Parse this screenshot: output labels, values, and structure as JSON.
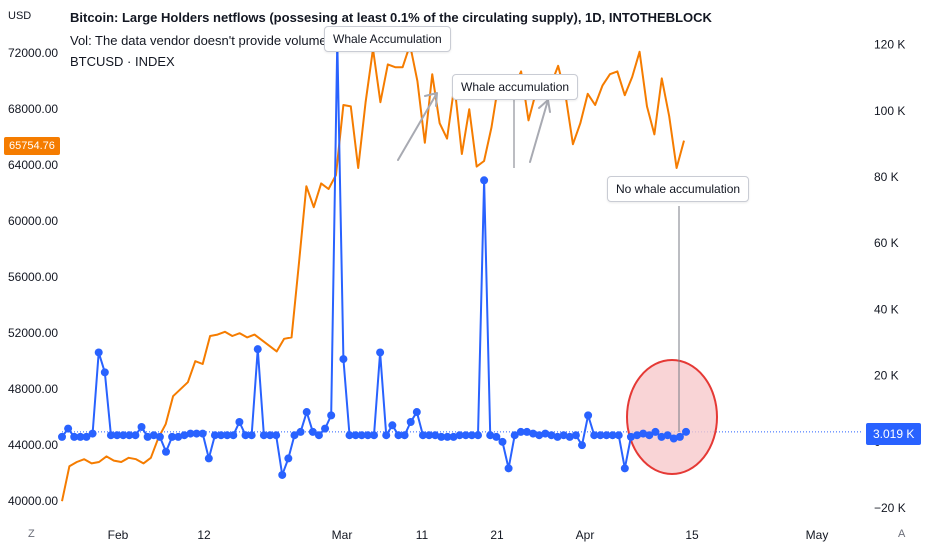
{
  "header": {
    "title": "Bitcoin: Large Holders netflows (possesing at least 0.1% of the circulating supply), 1D, INTOTHEBLOCK",
    "vol_note": "Vol: The data vendor doesn't provide volume data for this symbol.",
    "symbol": "BTCUSD · INDEX"
  },
  "left_axis_unit": "USD",
  "price_badge": "65754.76",
  "netflow_badge": "3.019 K",
  "corner_left": "Z",
  "corner_right": "A",
  "annotations": [
    {
      "text": "Whale Accumulation"
    },
    {
      "text": "Whale accumulation"
    },
    {
      "text": "No whale accumulation"
    }
  ],
  "colors": {
    "price_line": "#f57c00",
    "netflow_line": "#2962ff",
    "netflow_badge": "#2962ff",
    "price_badge": "#f57c00",
    "highlight_fill": "#f8c9cc",
    "highlight_stroke": "#e53935"
  },
  "chart_data": {
    "type": "line",
    "x_tick_labels": [
      "Feb",
      "12",
      "Mar",
      "11",
      "21",
      "Apr",
      "15",
      "May"
    ],
    "left_axis": {
      "label": "USD",
      "ticks": [
        "72000.00",
        "68000.00",
        "64000.00",
        "60000.00",
        "56000.00",
        "52000.00",
        "48000.00",
        "44000.00",
        "40000.00"
      ],
      "range": [
        38800,
        73800
      ]
    },
    "right_axis": {
      "ticks": [
        "120 K",
        "100 K",
        "80 K",
        "60 K",
        "40 K",
        "20 K",
        "0",
        "−20 K"
      ],
      "range": [
        -23000,
        125000
      ]
    },
    "series": [
      {
        "name": "BTCUSD",
        "axis": "left",
        "values": [
          40000,
          42500,
          42800,
          43000,
          42700,
          42800,
          43200,
          42900,
          42800,
          43100,
          43000,
          42700,
          43100,
          44500,
          45500,
          47500,
          48000,
          48500,
          50000,
          49800,
          51800,
          51900,
          52100,
          51800,
          52000,
          51700,
          51900,
          51500,
          51100,
          50700,
          51600,
          51700,
          57000,
          62500,
          61000,
          62700,
          62300,
          63300,
          68300,
          68200,
          63800,
          68500,
          72300,
          68500,
          71200,
          71000,
          71000,
          72600,
          70000,
          65600,
          70500,
          67000,
          65900,
          69700,
          64800,
          68000,
          63900,
          64300,
          66700,
          70000,
          70200,
          69500,
          70700,
          67200,
          69200,
          69700,
          69700,
          71100,
          69000,
          65500,
          67000,
          69100,
          68300,
          69700,
          70500,
          70700,
          69000,
          70300,
          72100,
          68200,
          66200,
          70200,
          67500,
          63800,
          65754.76
        ]
      },
      {
        "name": "Large Holders netflows",
        "axis": "right",
        "values": [
          1500,
          4000,
          1500,
          1500,
          1500,
          2500,
          27000,
          21000,
          2000,
          2000,
          2000,
          2000,
          2000,
          4500,
          1500,
          2000,
          1500,
          -3000,
          1500,
          1500,
          2000,
          2500,
          2500,
          2500,
          -5000,
          2000,
          2000,
          2000,
          2000,
          6000,
          2000,
          2000,
          28000,
          2000,
          2000,
          2000,
          -10000,
          -5000,
          2000,
          3000,
          9000,
          3000,
          2000,
          4000,
          8000,
          121000,
          25000,
          2000,
          2000,
          2000,
          2000,
          2000,
          27000,
          2000,
          5000,
          2000,
          2000,
          6000,
          9000,
          2000,
          2000,
          2000,
          1500,
          1500,
          1500,
          2000,
          2000,
          2000,
          2000,
          79000,
          2000,
          1500,
          0,
          -8000,
          2000,
          3000,
          3000,
          2500,
          2000,
          2500,
          2000,
          1500,
          2000,
          1500,
          2000,
          -1000,
          8000,
          2000,
          2000,
          2000,
          2000,
          2000,
          -8000,
          1500,
          2000,
          2500,
          2000,
          3000,
          1500,
          2000,
          1000,
          1500,
          3019
        ]
      }
    ],
    "grid": false,
    "legend": "none"
  }
}
